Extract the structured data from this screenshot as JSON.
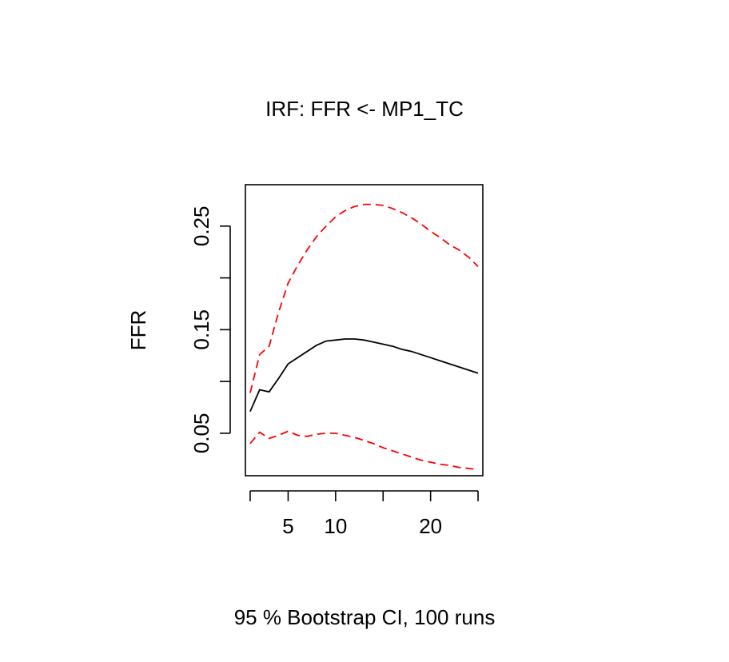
{
  "chart_data": {
    "type": "line",
    "title": "IRF: FFR <- MP1_TC",
    "xlabel": "95 % Bootstrap CI,  100 runs",
    "ylabel": "FFR",
    "xlim": [
      0.5,
      25.5
    ],
    "ylim": [
      0.009,
      0.29
    ],
    "x_ticks": [
      1,
      5,
      10,
      15,
      20,
      25
    ],
    "x_tick_labels": [
      "5",
      "10",
      "20"
    ],
    "x_tick_label_values": [
      5,
      10,
      20
    ],
    "y_ticks": [
      0.05,
      0.1,
      0.15,
      0.2,
      0.25
    ],
    "y_tick_labels": [
      "0.05",
      "0.15",
      "0.25"
    ],
    "y_tick_label_values": [
      0.05,
      0.15,
      0.25
    ],
    "grid": false,
    "legend": "none",
    "x": [
      1,
      2,
      3,
      4,
      5,
      6,
      7,
      8,
      9,
      10,
      11,
      12,
      13,
      14,
      15,
      16,
      17,
      18,
      19,
      20,
      21,
      22,
      23,
      24,
      25
    ],
    "series": [
      {
        "role": "estimate",
        "color": "#000000",
        "style": "solid",
        "values": [
          0.071,
          0.092,
          0.09,
          0.103,
          0.117,
          0.123,
          0.129,
          0.135,
          0.139,
          0.14,
          0.141,
          0.141,
          0.14,
          0.138,
          0.136,
          0.134,
          0.131,
          0.129,
          0.126,
          0.123,
          0.12,
          0.117,
          0.114,
          0.111,
          0.108
        ]
      },
      {
        "role": "upper_ci",
        "color": "#ff0000",
        "style": "dashed",
        "values": [
          0.089,
          0.126,
          0.134,
          0.167,
          0.195,
          0.212,
          0.227,
          0.24,
          0.25,
          0.259,
          0.265,
          0.269,
          0.271,
          0.271,
          0.27,
          0.267,
          0.263,
          0.258,
          0.252,
          0.245,
          0.239,
          0.232,
          0.227,
          0.22,
          0.211
        ]
      },
      {
        "role": "lower_ci",
        "color": "#ff0000",
        "style": "dashed",
        "values": [
          0.04,
          0.051,
          0.045,
          0.048,
          0.052,
          0.048,
          0.047,
          0.049,
          0.05,
          0.05,
          0.048,
          0.046,
          0.043,
          0.04,
          0.036,
          0.033,
          0.03,
          0.027,
          0.024,
          0.022,
          0.02,
          0.019,
          0.017,
          0.016,
          0.015
        ]
      }
    ]
  }
}
